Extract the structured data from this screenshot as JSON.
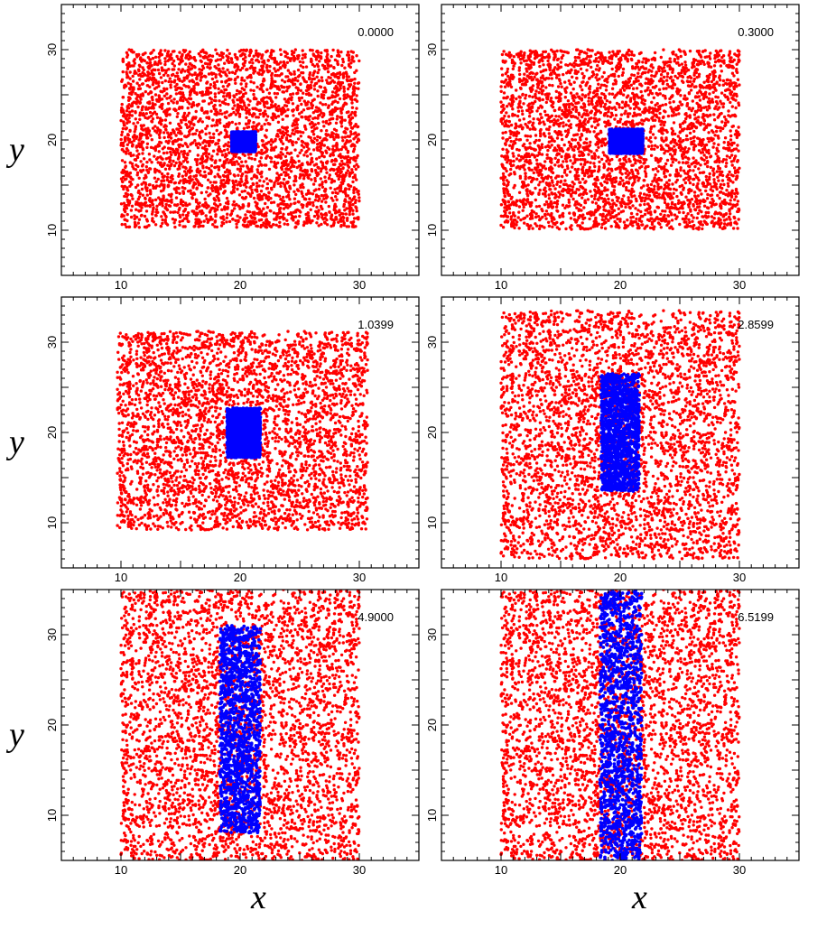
{
  "figure": {
    "axis_letters": {
      "x": "x",
      "y": "y"
    }
  },
  "chart_data": [
    {
      "type": "scatter",
      "panel": "top-left",
      "annotation": "0.0000",
      "xlabel": "",
      "ylabel": "y",
      "xlim": [
        5,
        35
      ],
      "ylim": [
        5,
        35
      ],
      "xticks": [
        "10",
        "20",
        "30"
      ],
      "yticks": [
        "10",
        "20",
        "30"
      ],
      "series": [
        {
          "color": "#ff0000",
          "region": {
            "xmin": 10,
            "xmax": 30,
            "ymin": 10.3,
            "ymax": 30
          }
        },
        {
          "color": "#0000ff",
          "region": {
            "xmin": 19.3,
            "xmax": 21.3,
            "ymin": 18.7,
            "ymax": 20.9
          }
        }
      ]
    },
    {
      "type": "scatter",
      "panel": "top-right",
      "annotation": "0.3000",
      "xlabel": "",
      "ylabel": "",
      "xlim": [
        5,
        35
      ],
      "ylim": [
        5,
        35
      ],
      "xticks": [
        "10",
        "20",
        "30"
      ],
      "yticks": [
        "10",
        "20",
        "30"
      ],
      "series": [
        {
          "color": "#ff0000",
          "region": {
            "xmin": 10,
            "xmax": 30,
            "ymin": 10.1,
            "ymax": 30
          }
        },
        {
          "color": "#0000ff",
          "region": {
            "xmin": 19.1,
            "xmax": 21.9,
            "ymin": 18.5,
            "ymax": 21.2
          }
        }
      ]
    },
    {
      "type": "scatter",
      "panel": "middle-left",
      "annotation": "1.0399",
      "xlabel": "",
      "ylabel": "y",
      "xlim": [
        5,
        35
      ],
      "ylim": [
        5,
        35
      ],
      "xticks": [
        "10",
        "20",
        "30"
      ],
      "yticks": [
        "10",
        "20",
        "30"
      ],
      "series": [
        {
          "color": "#ff0000",
          "region": {
            "xmin": 9.7,
            "xmax": 30.7,
            "ymin": 9.2,
            "ymax": 31.2
          }
        },
        {
          "color": "#0000ff",
          "region": {
            "xmin": 18.9,
            "xmax": 21.7,
            "ymin": 17.2,
            "ymax": 22.7
          }
        }
      ]
    },
    {
      "type": "scatter",
      "panel": "middle-right",
      "annotation": "2.8599",
      "xlabel": "",
      "ylabel": "",
      "xlim": [
        5,
        35
      ],
      "ylim": [
        5,
        35
      ],
      "xticks": [
        "10",
        "20",
        "30"
      ],
      "yticks": [
        "10",
        "20",
        "30"
      ],
      "series": [
        {
          "color": "#ff0000",
          "region": {
            "xmin": 10,
            "xmax": 30,
            "ymin": 6,
            "ymax": 33.5
          }
        },
        {
          "color": "#0000ff",
          "region": {
            "xmin": 18.4,
            "xmax": 21.6,
            "ymin": 13.5,
            "ymax": 26.5
          }
        }
      ]
    },
    {
      "type": "scatter",
      "panel": "bottom-left",
      "annotation": "4.9000",
      "xlabel": "x",
      "ylabel": "y",
      "xlim": [
        5,
        35
      ],
      "ylim": [
        5,
        35
      ],
      "xticks": [
        "10",
        "20",
        "30"
      ],
      "yticks": [
        "10",
        "20",
        "30"
      ],
      "series": [
        {
          "color": "#ff0000",
          "region": {
            "xmin": 10,
            "xmax": 30,
            "ymin": 5,
            "ymax": 35
          }
        },
        {
          "color": "#0000ff",
          "region": {
            "xmin": 18.3,
            "xmax": 21.7,
            "ymin": 8,
            "ymax": 31
          }
        }
      ]
    },
    {
      "type": "scatter",
      "panel": "bottom-right",
      "annotation": "6.5199",
      "xlabel": "x",
      "ylabel": "",
      "xlim": [
        5,
        35
      ],
      "ylim": [
        5,
        35
      ],
      "xticks": [
        "10",
        "20",
        "30"
      ],
      "yticks": [
        "10",
        "20",
        "30"
      ],
      "series": [
        {
          "color": "#ff0000",
          "region": {
            "xmin": 10,
            "xmax": 30,
            "ymin": 5,
            "ymax": 35
          }
        },
        {
          "color": "#0000ff",
          "region": {
            "xmin": 18.3,
            "xmax": 21.8,
            "ymin": 5,
            "ymax": 35
          }
        }
      ]
    }
  ]
}
